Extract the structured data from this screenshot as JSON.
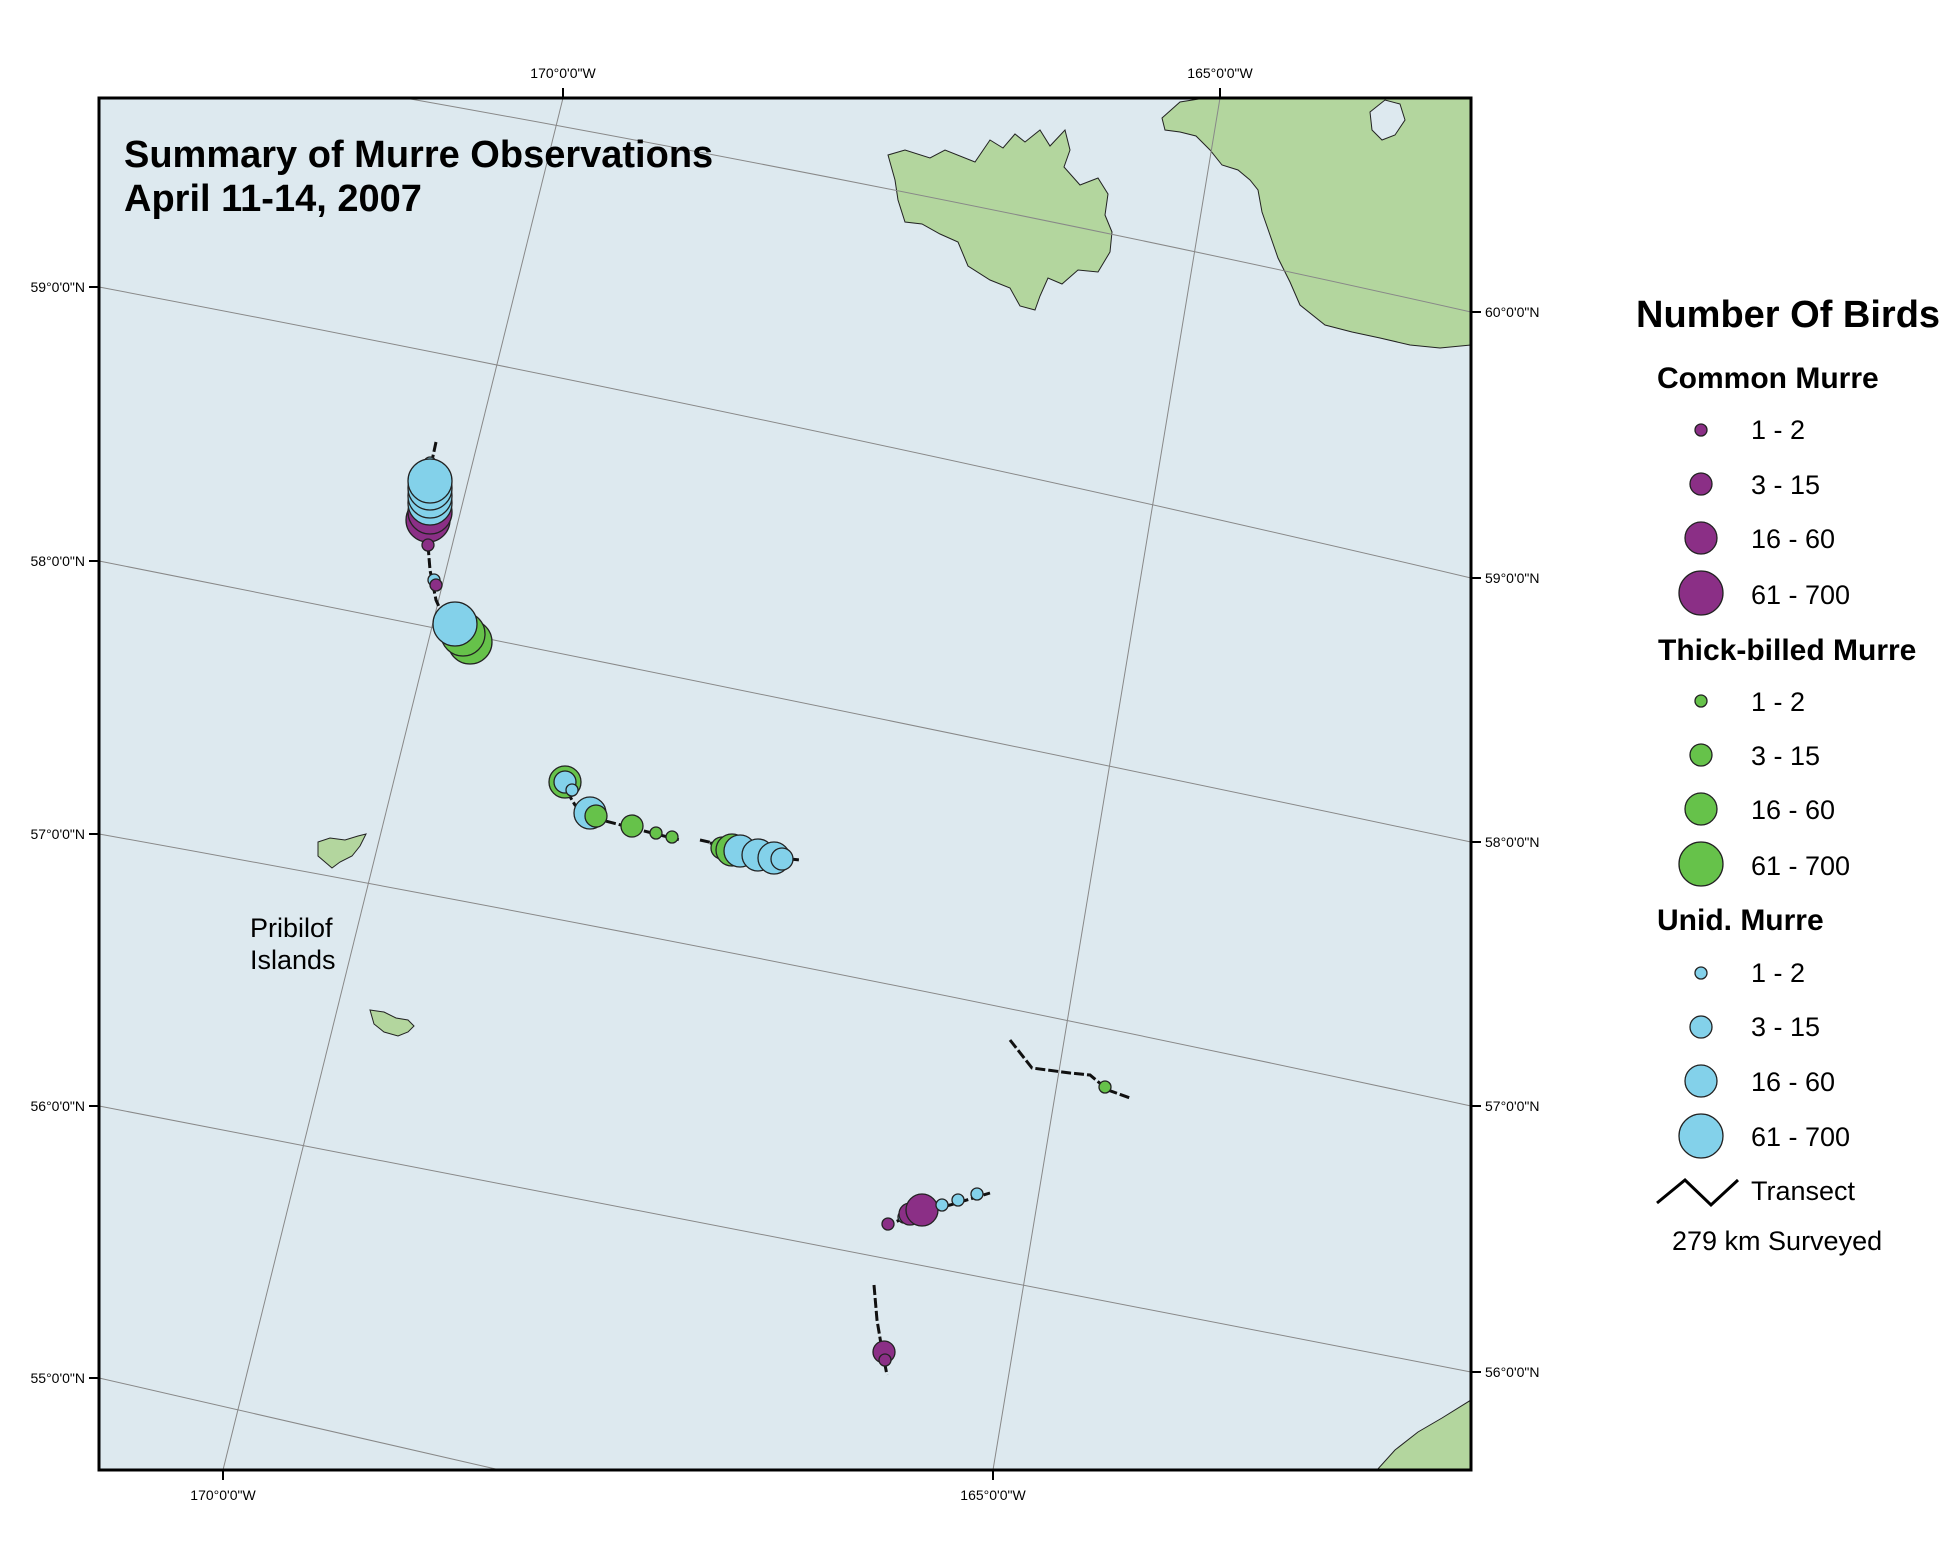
{
  "title": {
    "line1": "Summary of Murre Observations",
    "line2": "April 11-14, 2007"
  },
  "map_labels": {
    "region_line1": "Pribilof",
    "region_line2": "Islands"
  },
  "graticule_labels": {
    "top": [
      "170°0'0\"W",
      "165°0'0\"W"
    ],
    "bottom": [
      "170°0'0\"W",
      "165°0'0\"W"
    ],
    "left": [
      "59°0'0\"N",
      "58°0'0\"N",
      "57°0'0\"N",
      "56°0'0\"N",
      "55°0'0\"N"
    ],
    "right": [
      "60°0'0\"N",
      "59°0'0\"N",
      "58°0'0\"N",
      "57°0'0\"N",
      "56°0'0\"N"
    ]
  },
  "legend": {
    "title": "Number Of Birds",
    "size_classes": [
      "1 - 2",
      "3 - 15",
      "16 - 60",
      "61 - 700"
    ],
    "groups": [
      {
        "name": "Common Murre",
        "color": "#8b2f86"
      },
      {
        "name": "Thick-billed Murre",
        "color": "#66c24a"
      },
      {
        "name": "Unid. Murre",
        "color": "#83d1ea"
      }
    ],
    "transect_label": "Transect",
    "surveyed_text": "279 km Surveyed"
  },
  "colors": {
    "water": "#dde9ef",
    "land": "#b3d69e",
    "graticule": "#888888",
    "transect": "#111111"
  },
  "icons": {
    "transect_symbol": "zigzag-line-icon"
  }
}
